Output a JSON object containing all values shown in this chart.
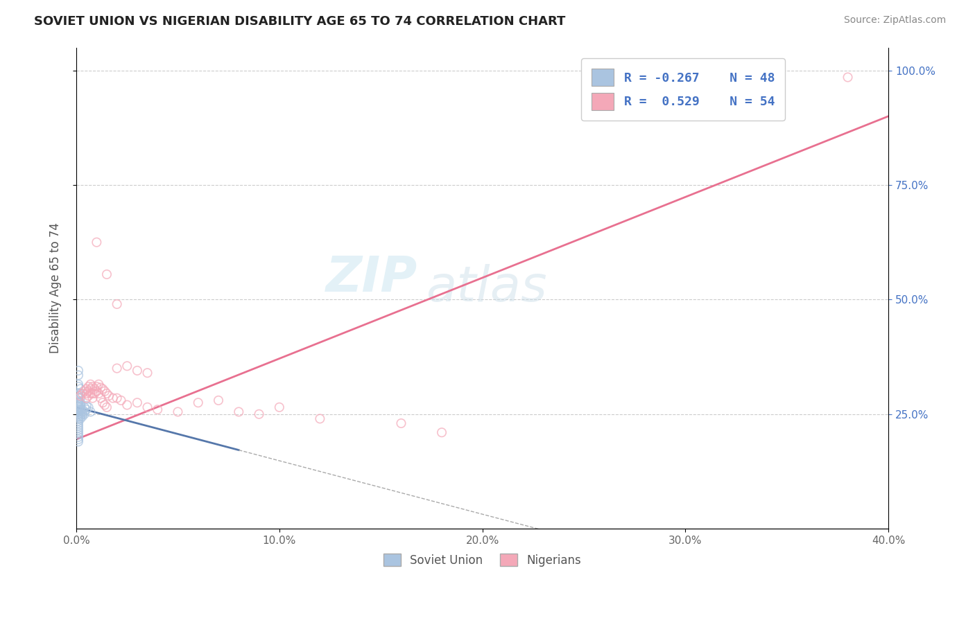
{
  "title": "SOVIET UNION VS NIGERIAN DISABILITY AGE 65 TO 74 CORRELATION CHART",
  "source": "Source: ZipAtlas.com",
  "ylabel": "Disability Age 65 to 74",
  "xlim": [
    0.0,
    0.4
  ],
  "ylim": [
    0.0,
    1.05
  ],
  "xtick_labels": [
    "0.0%",
    "10.0%",
    "20.0%",
    "30.0%",
    "40.0%"
  ],
  "xtick_values": [
    0.0,
    0.1,
    0.2,
    0.3,
    0.4
  ],
  "ytick_right_labels": [
    "25.0%",
    "50.0%",
    "75.0%",
    "100.0%"
  ],
  "ytick_values": [
    0.25,
    0.5,
    0.75,
    1.0
  ],
  "legend_r_soviet": "-0.267",
  "legend_n_soviet": "48",
  "legend_r_nigerian": "0.529",
  "legend_n_nigerian": "54",
  "soviet_color": "#aac4e0",
  "nigerian_color": "#f4a8b8",
  "soviet_line_color": "#5577aa",
  "nigerian_line_color": "#e87090",
  "trendline_nigerian_x0": 0.0,
  "trendline_nigerian_y0": 0.195,
  "trendline_nigerian_x1": 0.4,
  "trendline_nigerian_y1": 0.9,
  "trendline_soviet_x0": 0.0,
  "trendline_soviet_y0": 0.265,
  "trendline_soviet_x1": 0.06,
  "trendline_soviet_y1": 0.195,
  "watermark_text": "ZIP",
  "watermark_text2": "atlas",
  "background_color": "#ffffff",
  "grid_color": "#cccccc",
  "soviet_points": [
    [
      0.001,
      0.295
    ],
    [
      0.001,
      0.29
    ],
    [
      0.001,
      0.285
    ],
    [
      0.001,
      0.28
    ],
    [
      0.001,
      0.275
    ],
    [
      0.001,
      0.27
    ],
    [
      0.001,
      0.265
    ],
    [
      0.001,
      0.26
    ],
    [
      0.001,
      0.255
    ],
    [
      0.001,
      0.25
    ],
    [
      0.001,
      0.245
    ],
    [
      0.001,
      0.24
    ],
    [
      0.001,
      0.235
    ],
    [
      0.001,
      0.23
    ],
    [
      0.001,
      0.225
    ],
    [
      0.001,
      0.22
    ],
    [
      0.001,
      0.215
    ],
    [
      0.001,
      0.21
    ],
    [
      0.001,
      0.205
    ],
    [
      0.001,
      0.2
    ],
    [
      0.002,
      0.275
    ],
    [
      0.002,
      0.27
    ],
    [
      0.002,
      0.265
    ],
    [
      0.002,
      0.26
    ],
    [
      0.002,
      0.255
    ],
    [
      0.002,
      0.25
    ],
    [
      0.002,
      0.245
    ],
    [
      0.002,
      0.24
    ],
    [
      0.003,
      0.26
    ],
    [
      0.003,
      0.255
    ],
    [
      0.003,
      0.25
    ],
    [
      0.003,
      0.245
    ],
    [
      0.004,
      0.265
    ],
    [
      0.004,
      0.255
    ],
    [
      0.004,
      0.25
    ],
    [
      0.005,
      0.268
    ],
    [
      0.005,
      0.26
    ],
    [
      0.006,
      0.265
    ],
    [
      0.007,
      0.255
    ],
    [
      0.001,
      0.31
    ],
    [
      0.001,
      0.315
    ],
    [
      0.002,
      0.295
    ],
    [
      0.002,
      0.285
    ],
    [
      0.001,
      0.345
    ],
    [
      0.001,
      0.335
    ],
    [
      0.002,
      0.305
    ],
    [
      0.001,
      0.195
    ],
    [
      0.001,
      0.19
    ]
  ],
  "nigerian_points": [
    [
      0.002,
      0.29
    ],
    [
      0.003,
      0.295
    ],
    [
      0.004,
      0.3
    ],
    [
      0.005,
      0.295
    ],
    [
      0.005,
      0.305
    ],
    [
      0.005,
      0.285
    ],
    [
      0.006,
      0.3
    ],
    [
      0.006,
      0.29
    ],
    [
      0.006,
      0.31
    ],
    [
      0.007,
      0.305
    ],
    [
      0.007,
      0.295
    ],
    [
      0.007,
      0.315
    ],
    [
      0.008,
      0.31
    ],
    [
      0.008,
      0.295
    ],
    [
      0.008,
      0.285
    ],
    [
      0.009,
      0.305
    ],
    [
      0.009,
      0.295
    ],
    [
      0.01,
      0.31
    ],
    [
      0.01,
      0.3
    ],
    [
      0.011,
      0.315
    ],
    [
      0.011,
      0.295
    ],
    [
      0.012,
      0.308
    ],
    [
      0.012,
      0.285
    ],
    [
      0.013,
      0.305
    ],
    [
      0.013,
      0.275
    ],
    [
      0.014,
      0.3
    ],
    [
      0.014,
      0.27
    ],
    [
      0.015,
      0.295
    ],
    [
      0.015,
      0.265
    ],
    [
      0.016,
      0.29
    ],
    [
      0.018,
      0.285
    ],
    [
      0.02,
      0.285
    ],
    [
      0.022,
      0.28
    ],
    [
      0.025,
      0.27
    ],
    [
      0.03,
      0.275
    ],
    [
      0.035,
      0.265
    ],
    [
      0.04,
      0.26
    ],
    [
      0.05,
      0.255
    ],
    [
      0.06,
      0.275
    ],
    [
      0.07,
      0.28
    ],
    [
      0.08,
      0.255
    ],
    [
      0.09,
      0.25
    ],
    [
      0.1,
      0.265
    ],
    [
      0.12,
      0.24
    ],
    [
      0.16,
      0.23
    ],
    [
      0.18,
      0.21
    ],
    [
      0.02,
      0.35
    ],
    [
      0.025,
      0.355
    ],
    [
      0.03,
      0.345
    ],
    [
      0.035,
      0.34
    ],
    [
      0.015,
      0.555
    ],
    [
      0.02,
      0.49
    ],
    [
      0.01,
      0.625
    ],
    [
      0.38,
      0.985
    ]
  ]
}
